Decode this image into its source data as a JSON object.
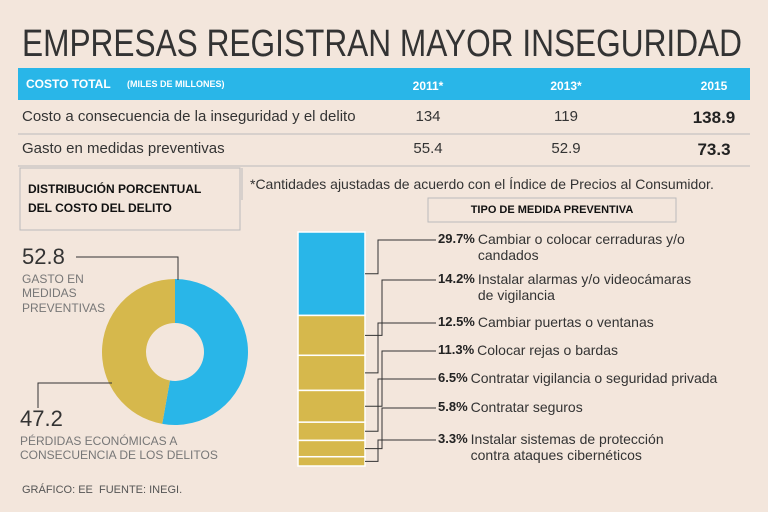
{
  "title": "EMPRESAS REGISTRAN MAYOR INSEGURIDAD",
  "table": {
    "header": {
      "label": "COSTO TOTAL",
      "unit": "(MILES DE MILLONES)",
      "years": [
        "2011*",
        "2013*",
        "2015"
      ]
    },
    "rows": [
      {
        "label": "Costo a consecuencia de la inseguridad y el delito",
        "values": [
          134,
          119,
          138.9
        ]
      },
      {
        "label": "Gasto en medidas preventivas",
        "values": [
          55.4,
          52.9,
          73.3
        ]
      }
    ]
  },
  "note": "*Cantidades ajustadas de acuerdo con el Índice de Precios al Consumidor.",
  "chart_data": [
    {
      "type": "pie",
      "title": "DISTRIBUCIÓN PORCENTUAL DEL COSTO DEL DELITO",
      "categories": [
        "GASTO EN MEDIDAS PREVENTIVAS",
        "PÉRDIDAS ECONÓMICAS A CONSECUENCIA DE LOS DELITOS"
      ],
      "values": [
        52.8,
        47.2
      ],
      "colors": [
        "#29b6e8",
        "#d6b84c"
      ]
    },
    {
      "type": "stacked-bar",
      "title": "TIPO DE MEDIDA PREVENTIVA",
      "categories": [
        "Cambiar o colocar cerraduras y/o candados",
        "Instalar alarmas y/o videocámaras de vigilancia",
        "Cambiar puertas o ventanas",
        "Colocar rejas o bardas",
        "Contratar vigilancia o seguridad privada",
        "Contratar seguros",
        "Instalar sistemas de protección contra ataques cibernéticos"
      ],
      "values": [
        29.7,
        14.2,
        12.5,
        11.3,
        6.5,
        5.8,
        3.3
      ],
      "value_labels": [
        "29.7%",
        "14.2%",
        "12.5%",
        "11.3%",
        "6.5%",
        "5.8%",
        "3.3%"
      ],
      "colors": [
        "#29b6e8",
        "#d6b84c",
        "#d6b84c",
        "#d6b84c",
        "#d6b84c",
        "#d6b84c",
        "#d6b84c"
      ]
    }
  ],
  "footer": "GRÁFICO: EE  FUENTE: INEGI."
}
